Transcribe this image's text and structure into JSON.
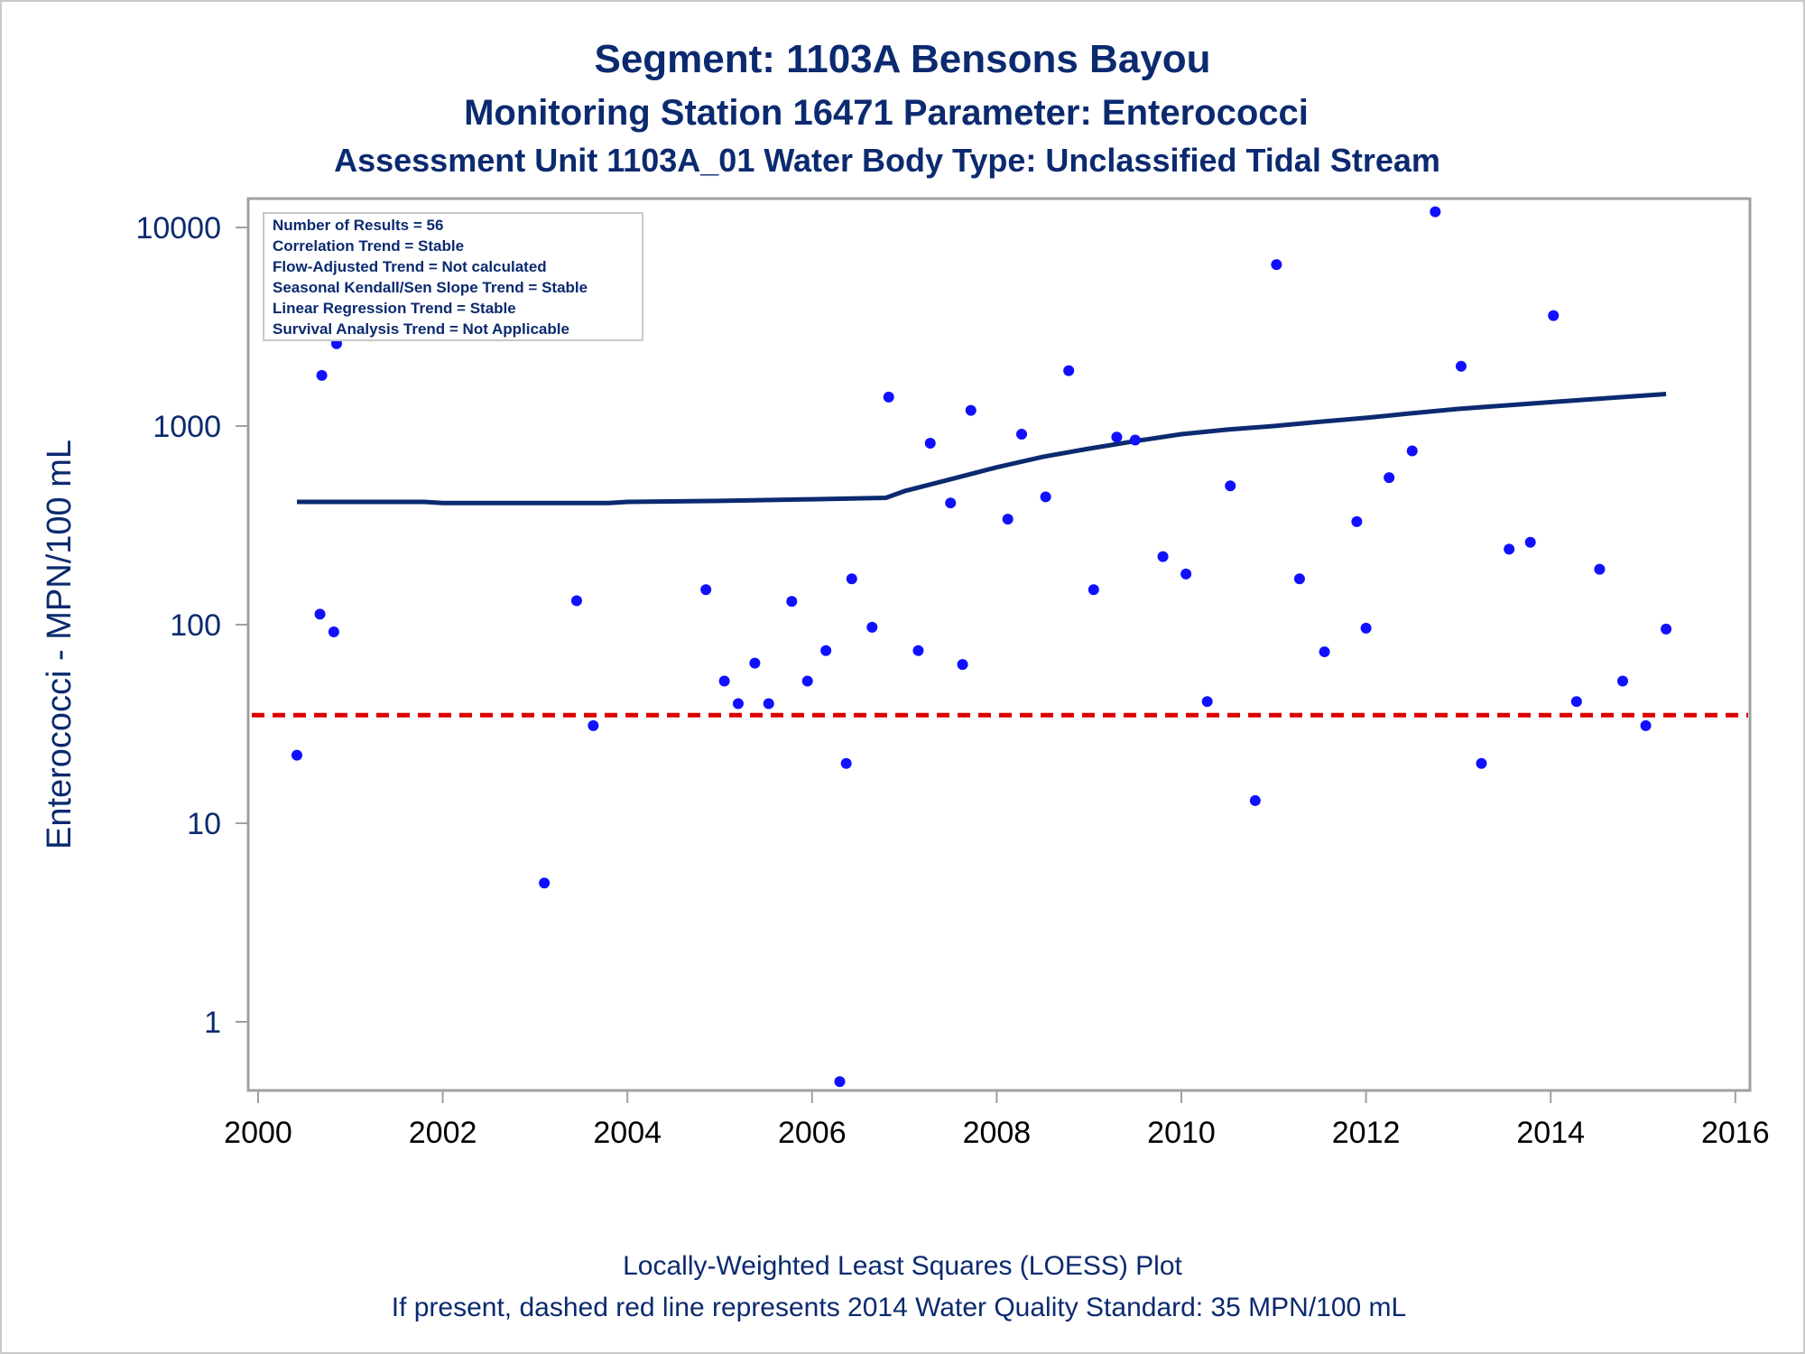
{
  "titles": {
    "line1": "Segment: 1103A  Bensons Bayou",
    "line2": "Monitoring Station 16471 Parameter: Enterococci",
    "line3": "Assessment Unit 1103A_01   Water Body Type: Unclassified Tidal Stream"
  },
  "stats_box": [
    "Number of Results = 56",
    "Correlation Trend = Stable",
    "Flow-Adjusted Trend = Not calculated",
    "Seasonal Kendall/Sen Slope Trend = Stable",
    "Linear Regression Trend = Stable",
    "Survival Analysis Trend = Not Applicable"
  ],
  "footnotes": {
    "line1": "Locally-Weighted Least Squares (LOESS) Plot",
    "line2": "If present, dashed red line represents 2014 Water Quality Standard: 35 MPN/100 mL"
  },
  "colors": {
    "text": "#0b2a6f",
    "points": "#1010ff",
    "loess": "#0b2a6f",
    "standard": "#dd0000",
    "frame": "#a0a0a0"
  },
  "chart_data": {
    "type": "scatter",
    "ylabel": "Enterococci - MPN/100 mL",
    "xlabel": "",
    "y_scale": "log",
    "xlim": [
      2000,
      2016
    ],
    "ylim": [
      0.45,
      14000
    ],
    "x_ticks": [
      2000,
      2002,
      2004,
      2006,
      2008,
      2010,
      2012,
      2014,
      2016
    ],
    "y_ticks": [
      1,
      10,
      100,
      1000,
      10000
    ],
    "standard_line": 35,
    "points": [
      {
        "x": 2000.42,
        "y": 22
      },
      {
        "x": 2000.67,
        "y": 113
      },
      {
        "x": 2000.69,
        "y": 1800
      },
      {
        "x": 2000.82,
        "y": 92
      },
      {
        "x": 2000.85,
        "y": 2600
      },
      {
        "x": 2003.1,
        "y": 5
      },
      {
        "x": 2003.45,
        "y": 132
      },
      {
        "x": 2003.63,
        "y": 31
      },
      {
        "x": 2004.85,
        "y": 150
      },
      {
        "x": 2005.05,
        "y": 52
      },
      {
        "x": 2005.2,
        "y": 40
      },
      {
        "x": 2005.38,
        "y": 64
      },
      {
        "x": 2005.53,
        "y": 40
      },
      {
        "x": 2005.78,
        "y": 131
      },
      {
        "x": 2005.95,
        "y": 52
      },
      {
        "x": 2006.15,
        "y": 74
      },
      {
        "x": 2006.3,
        "y": 0.5
      },
      {
        "x": 2006.37,
        "y": 20
      },
      {
        "x": 2006.43,
        "y": 170
      },
      {
        "x": 2006.65,
        "y": 97
      },
      {
        "x": 2006.83,
        "y": 1400
      },
      {
        "x": 2007.15,
        "y": 74
      },
      {
        "x": 2007.28,
        "y": 820
      },
      {
        "x": 2007.5,
        "y": 410
      },
      {
        "x": 2007.63,
        "y": 63
      },
      {
        "x": 2007.72,
        "y": 1200
      },
      {
        "x": 2008.12,
        "y": 340
      },
      {
        "x": 2008.27,
        "y": 910
      },
      {
        "x": 2008.53,
        "y": 440
      },
      {
        "x": 2008.78,
        "y": 1900
      },
      {
        "x": 2009.05,
        "y": 150
      },
      {
        "x": 2009.3,
        "y": 880
      },
      {
        "x": 2009.5,
        "y": 850
      },
      {
        "x": 2009.8,
        "y": 220
      },
      {
        "x": 2010.05,
        "y": 180
      },
      {
        "x": 2010.28,
        "y": 41
      },
      {
        "x": 2010.53,
        "y": 500
      },
      {
        "x": 2010.8,
        "y": 13
      },
      {
        "x": 2011.03,
        "y": 6500
      },
      {
        "x": 2011.28,
        "y": 170
      },
      {
        "x": 2011.55,
        "y": 73
      },
      {
        "x": 2011.9,
        "y": 330
      },
      {
        "x": 2012.0,
        "y": 96
      },
      {
        "x": 2012.25,
        "y": 550
      },
      {
        "x": 2012.5,
        "y": 750
      },
      {
        "x": 2012.75,
        "y": 12000
      },
      {
        "x": 2013.03,
        "y": 2000
      },
      {
        "x": 2013.25,
        "y": 20
      },
      {
        "x": 2013.55,
        "y": 240
      },
      {
        "x": 2013.78,
        "y": 260
      },
      {
        "x": 2014.03,
        "y": 3600
      },
      {
        "x": 2014.28,
        "y": 41
      },
      {
        "x": 2014.53,
        "y": 190
      },
      {
        "x": 2014.78,
        "y": 52
      },
      {
        "x": 2015.03,
        "y": 31
      },
      {
        "x": 2015.25,
        "y": 95
      }
    ],
    "loess": [
      {
        "x": 2000.42,
        "y": 415
      },
      {
        "x": 2001.8,
        "y": 415
      },
      {
        "x": 2002.0,
        "y": 410
      },
      {
        "x": 2003.8,
        "y": 410
      },
      {
        "x": 2004.0,
        "y": 415
      },
      {
        "x": 2005.0,
        "y": 420
      },
      {
        "x": 2006.0,
        "y": 428
      },
      {
        "x": 2006.8,
        "y": 435
      },
      {
        "x": 2007.0,
        "y": 470
      },
      {
        "x": 2007.5,
        "y": 540
      },
      {
        "x": 2008.0,
        "y": 620
      },
      {
        "x": 2008.5,
        "y": 700
      },
      {
        "x": 2009.0,
        "y": 770
      },
      {
        "x": 2009.5,
        "y": 840
      },
      {
        "x": 2010.0,
        "y": 910
      },
      {
        "x": 2010.5,
        "y": 960
      },
      {
        "x": 2011.0,
        "y": 1000
      },
      {
        "x": 2011.5,
        "y": 1050
      },
      {
        "x": 2012.0,
        "y": 1100
      },
      {
        "x": 2012.5,
        "y": 1160
      },
      {
        "x": 2013.0,
        "y": 1220
      },
      {
        "x": 2013.5,
        "y": 1270
      },
      {
        "x": 2014.0,
        "y": 1320
      },
      {
        "x": 2014.5,
        "y": 1370
      },
      {
        "x": 2015.25,
        "y": 1450
      }
    ]
  }
}
